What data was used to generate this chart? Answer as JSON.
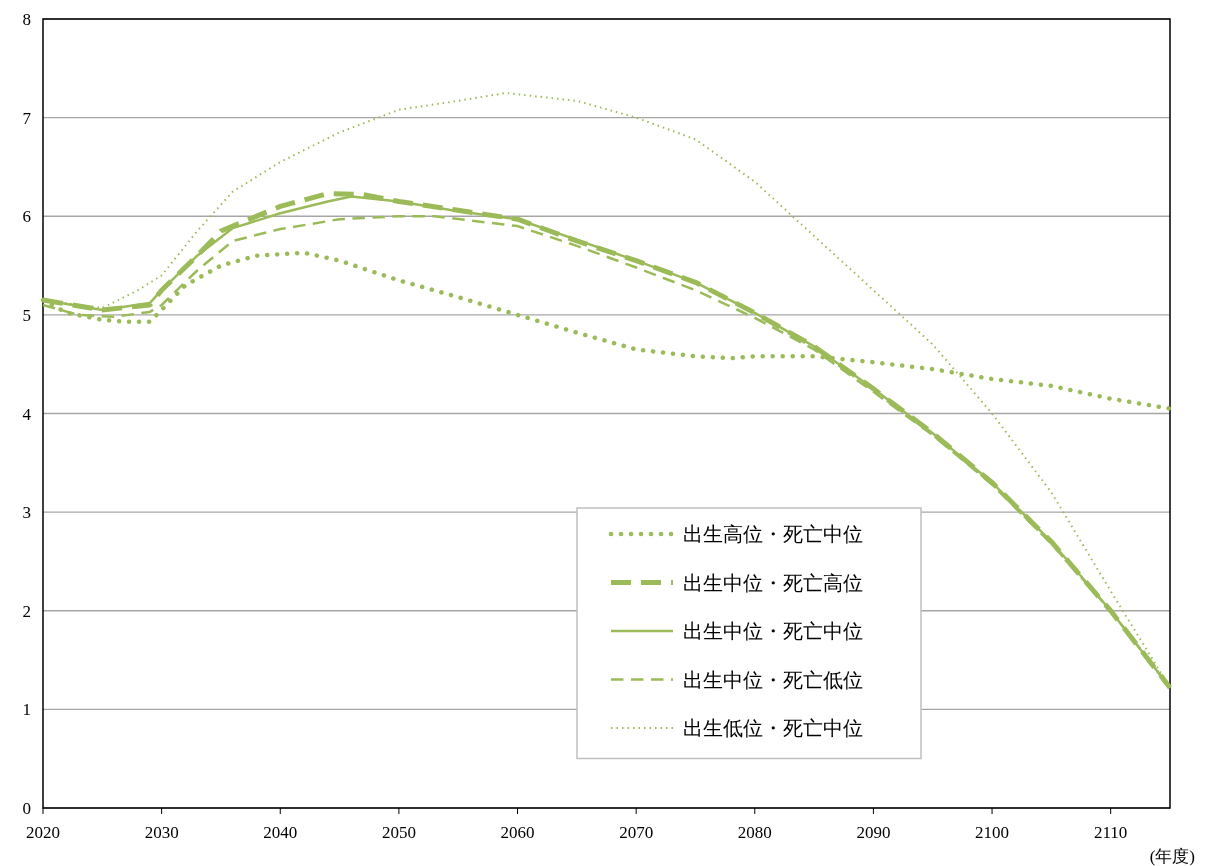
{
  "chart_data": {
    "type": "line",
    "xlabel": "(年度)",
    "xlim": [
      2020,
      2115
    ],
    "xticks": [
      2020,
      2030,
      2040,
      2050,
      2060,
      2070,
      2080,
      2090,
      2100,
      2110
    ],
    "ylim": [
      0,
      8
    ],
    "yticks": [
      0,
      1,
      2,
      3,
      4,
      5,
      6,
      7,
      8
    ],
    "grid": "y",
    "legend": "bottom right",
    "series": [
      {
        "name": "出生高位・死亡中位",
        "color": "#9bbb59",
        "line_style": "dotted",
        "x": [
          2020,
          2022,
          2025,
          2027,
          2029,
          2030,
          2032,
          2035,
          2038,
          2042,
          2045,
          2050,
          2055,
          2060,
          2065,
          2070,
          2075,
          2078,
          2080,
          2085,
          2090,
          2095,
          2100,
          2105,
          2110,
          2115
        ],
        "values": [
          5.15,
          5.02,
          4.95,
          4.93,
          4.93,
          5.05,
          5.3,
          5.5,
          5.6,
          5.63,
          5.55,
          5.35,
          5.18,
          5.0,
          4.82,
          4.65,
          4.58,
          4.56,
          4.58,
          4.58,
          4.52,
          4.45,
          4.35,
          4.28,
          4.15,
          4.05
        ]
      },
      {
        "name": "出生中位・死亡高位",
        "color": "#9bbb59",
        "line_style": "dashed",
        "x": [
          2020,
          2025,
          2029,
          2030,
          2033,
          2035,
          2040,
          2044,
          2047,
          2050,
          2055,
          2060,
          2065,
          2070,
          2075,
          2080,
          2085,
          2090,
          2095,
          2100,
          2105,
          2110,
          2115
        ],
        "values": [
          5.15,
          5.05,
          5.1,
          5.25,
          5.6,
          5.85,
          6.1,
          6.23,
          6.22,
          6.15,
          6.06,
          5.97,
          5.75,
          5.55,
          5.33,
          5.02,
          4.68,
          4.25,
          3.8,
          3.3,
          2.7,
          2.0,
          1.22
        ]
      },
      {
        "name": "出生中位・死亡中位",
        "color": "#9bbb59",
        "line_style": "solid",
        "x": [
          2020,
          2025,
          2029,
          2030,
          2033,
          2036,
          2040,
          2044,
          2046,
          2050,
          2055,
          2060,
          2065,
          2070,
          2075,
          2080,
          2085,
          2090,
          2095,
          2100,
          2105,
          2110,
          2115
        ],
        "values": [
          5.15,
          5.05,
          5.12,
          5.25,
          5.6,
          5.88,
          6.03,
          6.15,
          6.2,
          6.15,
          6.05,
          5.97,
          5.76,
          5.55,
          5.33,
          5.02,
          4.68,
          4.25,
          3.8,
          3.3,
          2.7,
          2.0,
          1.22
        ]
      },
      {
        "name": "出生中位・死亡低位",
        "color": "#9bbb59",
        "line_style": "dashed",
        "x": [
          2020,
          2023,
          2026,
          2029,
          2030,
          2033,
          2036,
          2040,
          2045,
          2050,
          2053,
          2060,
          2065,
          2070,
          2075,
          2080,
          2085,
          2090,
          2095,
          2100,
          2105,
          2110,
          2115
        ],
        "values": [
          5.1,
          5.0,
          4.98,
          5.03,
          5.1,
          5.45,
          5.75,
          5.87,
          5.97,
          6.0,
          6.0,
          5.9,
          5.7,
          5.48,
          5.25,
          4.97,
          4.65,
          4.22,
          3.78,
          3.28,
          2.68,
          2.0,
          1.22
        ]
      },
      {
        "name": "出生低位・死亡中位",
        "color": "#9bbb59",
        "line_style": "dotted",
        "x": [
          2020,
          2025,
          2028,
          2030,
          2033,
          2036,
          2040,
          2045,
          2050,
          2055,
          2059,
          2065,
          2070,
          2075,
          2080,
          2085,
          2090,
          2095,
          2100,
          2105,
          2110,
          2115
        ],
        "values": [
          5.15,
          5.07,
          5.25,
          5.4,
          5.85,
          6.25,
          6.55,
          6.85,
          7.08,
          7.17,
          7.25,
          7.17,
          7.0,
          6.78,
          6.35,
          5.8,
          5.25,
          4.7,
          4.0,
          3.2,
          2.2,
          1.22
        ]
      }
    ]
  }
}
